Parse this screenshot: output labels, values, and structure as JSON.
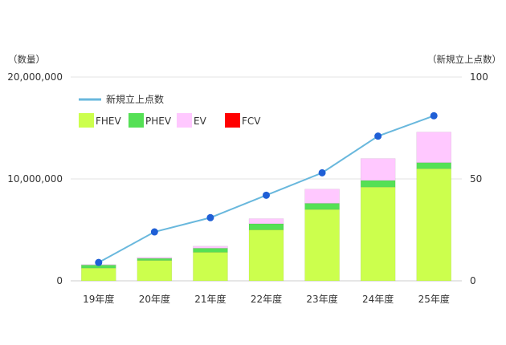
{
  "chart_data": {
    "type": "bar",
    "stacked": true,
    "categories": [
      "19年度",
      "20年度",
      "21年度",
      "22年度",
      "23年度",
      "24年度",
      "25年度"
    ],
    "series": [
      {
        "name": "FHEV",
        "color": "#ccff4d",
        "values": [
          1250000,
          2000000,
          2800000,
          5000000,
          7000000,
          9200000,
          11000000
        ]
      },
      {
        "name": "PHEV",
        "color": "#55e055",
        "values": [
          300000,
          200000,
          400000,
          600000,
          600000,
          650000,
          600000
        ]
      },
      {
        "name": "EV",
        "color": "#ffc8ff",
        "values": [
          50000,
          100000,
          200000,
          500000,
          1400000,
          2150000,
          3000000
        ]
      },
      {
        "name": "FCV",
        "color": "#ff0000",
        "values": [
          0,
          0,
          0,
          0,
          0,
          0,
          0
        ]
      }
    ],
    "line_series": {
      "name": "新規立上点数",
      "color": "#69b8dd",
      "marker_color": "#1f5fd6",
      "axis": "right",
      "values": [
        9,
        24,
        31,
        42,
        53,
        71,
        81
      ]
    },
    "y_left": {
      "label": "（数量）",
      "ylim": [
        0,
        20000000
      ],
      "ticks": [
        0,
        10000000,
        20000000
      ],
      "tick_labels": [
        "0",
        "10,000,000",
        "20,000,000"
      ]
    },
    "y_right": {
      "label": "（新規立上点数）",
      "ylim": [
        0,
        100
      ],
      "ticks": [
        0,
        50,
        100
      ],
      "tick_labels": [
        "0",
        "50",
        "100"
      ]
    },
    "grid": true,
    "legend_position": "top-left"
  }
}
